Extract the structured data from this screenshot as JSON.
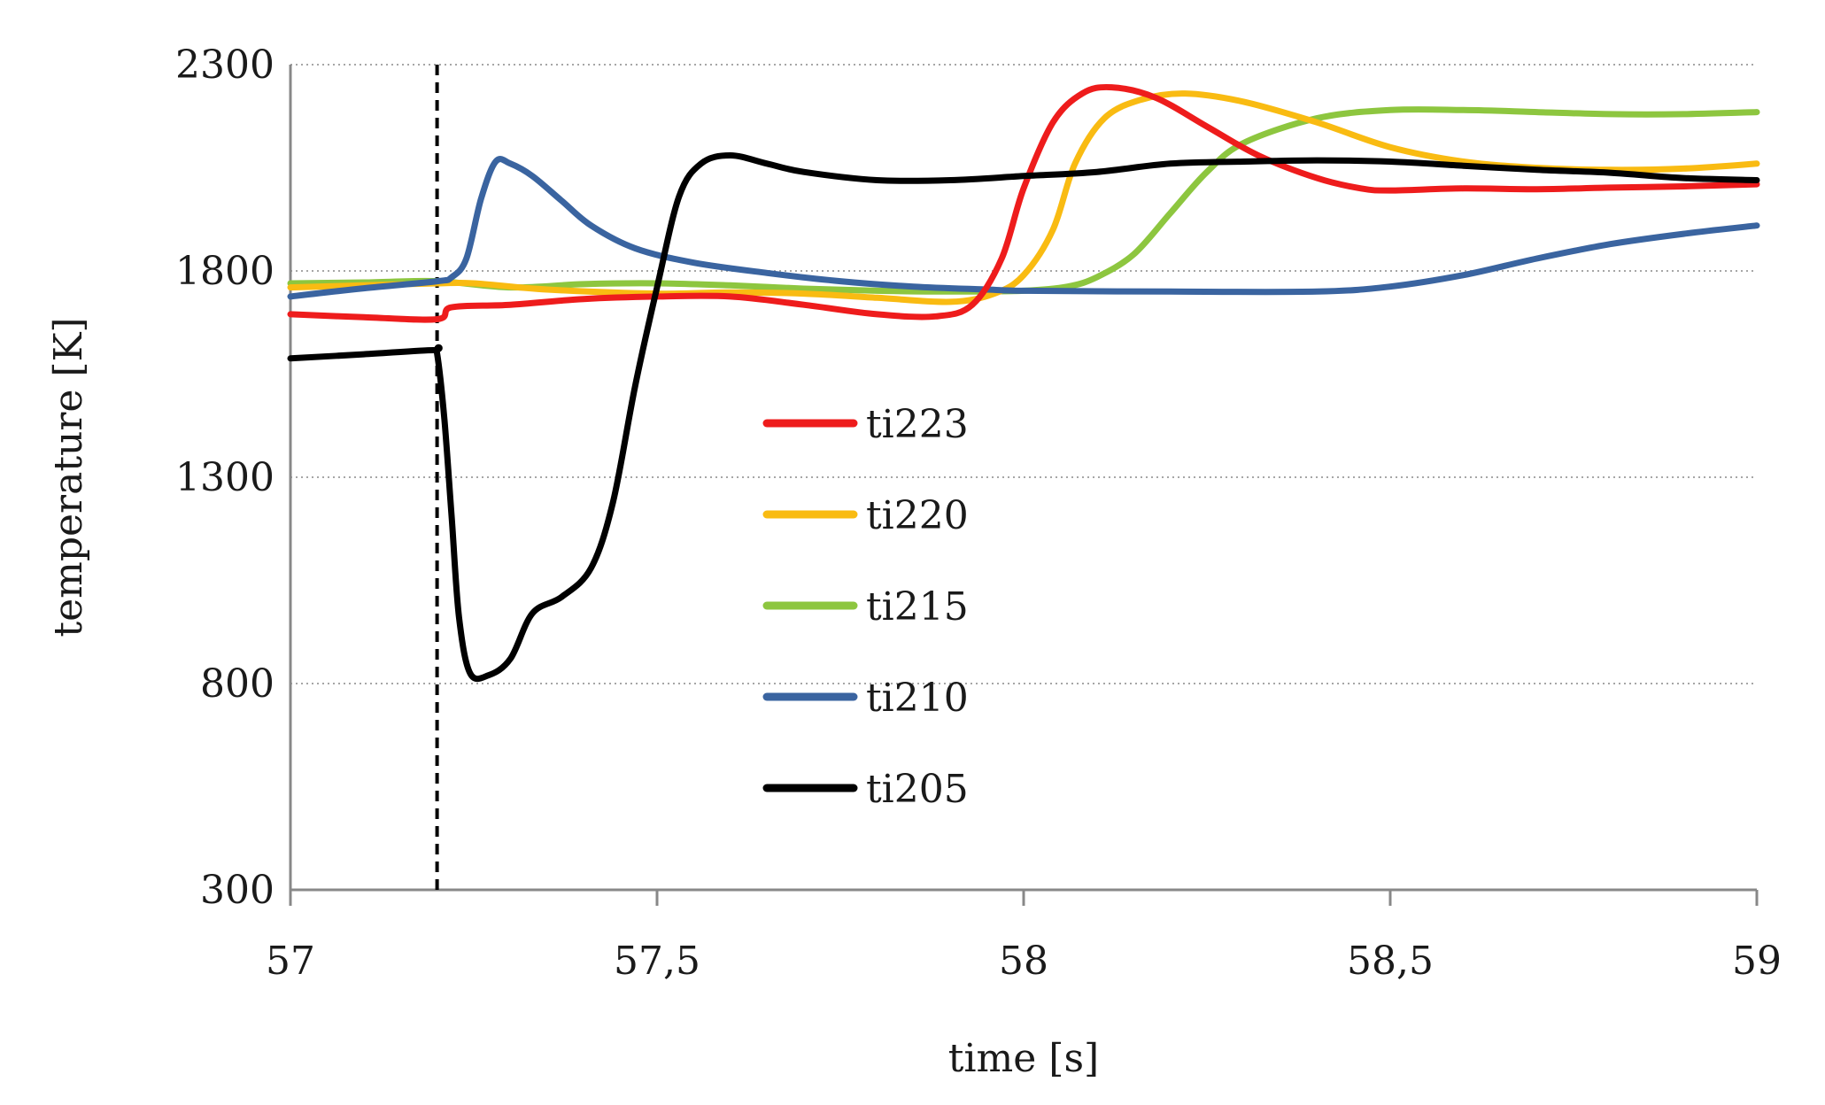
{
  "chart_data": {
    "type": "line",
    "title": "",
    "xlabel": "time [s]",
    "ylabel": "temperature [K]",
    "xlim": [
      57,
      59
    ],
    "ylim": [
      300,
      2300
    ],
    "x_ticks": [
      57,
      57.5,
      58,
      58.5,
      59
    ],
    "x_tick_labels": [
      "57",
      "57,5",
      "58",
      "58,5",
      "59"
    ],
    "y_ticks": [
      300,
      800,
      1300,
      1800,
      2300
    ],
    "y_tick_labels": [
      "300",
      "800",
      "1300",
      "1800",
      "2300"
    ],
    "grid": true,
    "event_marker_x": 57.2,
    "legend_position": "center",
    "series": [
      {
        "name": "ti223",
        "color": "#ee1c1c",
        "points": [
          [
            57.0,
            1695
          ],
          [
            57.1,
            1688
          ],
          [
            57.2,
            1683
          ],
          [
            57.22,
            1712
          ],
          [
            57.3,
            1718
          ],
          [
            57.4,
            1732
          ],
          [
            57.5,
            1738
          ],
          [
            57.6,
            1738
          ],
          [
            57.7,
            1718
          ],
          [
            57.8,
            1695
          ],
          [
            57.88,
            1690
          ],
          [
            57.93,
            1718
          ],
          [
            57.97,
            1830
          ],
          [
            58.0,
            2000
          ],
          [
            58.04,
            2160
          ],
          [
            58.08,
            2230
          ],
          [
            58.12,
            2245
          ],
          [
            58.18,
            2220
          ],
          [
            58.25,
            2150
          ],
          [
            58.32,
            2080
          ],
          [
            58.4,
            2025
          ],
          [
            58.46,
            2000
          ],
          [
            58.5,
            1995
          ],
          [
            58.6,
            2000
          ],
          [
            58.7,
            1998
          ],
          [
            58.8,
            2002
          ],
          [
            58.9,
            2005
          ],
          [
            59.0,
            2010
          ]
        ]
      },
      {
        "name": "ti220",
        "color": "#f9bb12",
        "points": [
          [
            57.0,
            1760
          ],
          [
            57.1,
            1765
          ],
          [
            57.2,
            1770
          ],
          [
            57.25,
            1770
          ],
          [
            57.35,
            1755
          ],
          [
            57.5,
            1745
          ],
          [
            57.6,
            1748
          ],
          [
            57.7,
            1745
          ],
          [
            57.8,
            1735
          ],
          [
            57.9,
            1725
          ],
          [
            57.96,
            1745
          ],
          [
            58.0,
            1790
          ],
          [
            58.04,
            1900
          ],
          [
            58.07,
            2060
          ],
          [
            58.11,
            2170
          ],
          [
            58.16,
            2215
          ],
          [
            58.22,
            2230
          ],
          [
            58.3,
            2210
          ],
          [
            58.4,
            2160
          ],
          [
            58.5,
            2100
          ],
          [
            58.6,
            2065
          ],
          [
            58.7,
            2050
          ],
          [
            58.8,
            2045
          ],
          [
            58.9,
            2048
          ],
          [
            59.0,
            2060
          ]
        ]
      },
      {
        "name": "ti215",
        "color": "#8dc63f",
        "points": [
          [
            57.0,
            1770
          ],
          [
            57.1,
            1772
          ],
          [
            57.2,
            1775
          ],
          [
            57.3,
            1760
          ],
          [
            57.4,
            1768
          ],
          [
            57.5,
            1770
          ],
          [
            57.6,
            1765
          ],
          [
            57.7,
            1757
          ],
          [
            57.8,
            1752
          ],
          [
            57.9,
            1750
          ],
          [
            58.0,
            1752
          ],
          [
            58.06,
            1762
          ],
          [
            58.1,
            1785
          ],
          [
            58.15,
            1840
          ],
          [
            58.2,
            1940
          ],
          [
            58.25,
            2040
          ],
          [
            58.3,
            2110
          ],
          [
            58.4,
            2170
          ],
          [
            58.5,
            2190
          ],
          [
            58.6,
            2190
          ],
          [
            58.7,
            2185
          ],
          [
            58.8,
            2180
          ],
          [
            58.9,
            2180
          ],
          [
            59.0,
            2185
          ]
        ]
      },
      {
        "name": "ti210",
        "color": "#3a64a0",
        "points": [
          [
            57.0,
            1738
          ],
          [
            57.1,
            1758
          ],
          [
            57.2,
            1775
          ],
          [
            57.22,
            1785
          ],
          [
            57.24,
            1830
          ],
          [
            57.26,
            1975
          ],
          [
            57.28,
            2065
          ],
          [
            57.3,
            2060
          ],
          [
            57.33,
            2030
          ],
          [
            57.37,
            1970
          ],
          [
            57.41,
            1910
          ],
          [
            57.47,
            1855
          ],
          [
            57.55,
            1820
          ],
          [
            57.65,
            1795
          ],
          [
            57.75,
            1775
          ],
          [
            57.85,
            1762
          ],
          [
            57.95,
            1755
          ],
          [
            58.0,
            1752
          ],
          [
            58.2,
            1750
          ],
          [
            58.4,
            1750
          ],
          [
            58.5,
            1762
          ],
          [
            58.6,
            1790
          ],
          [
            58.7,
            1830
          ],
          [
            58.8,
            1865
          ],
          [
            58.9,
            1890
          ],
          [
            59.0,
            1910
          ]
        ]
      },
      {
        "name": "ti205",
        "color": "#000000",
        "points": [
          [
            57.0,
            1588
          ],
          [
            57.1,
            1598
          ],
          [
            57.195,
            1608
          ],
          [
            57.2,
            1600
          ],
          [
            57.21,
            1440
          ],
          [
            57.22,
            1200
          ],
          [
            57.23,
            960
          ],
          [
            57.245,
            825
          ],
          [
            57.27,
            820
          ],
          [
            57.3,
            860
          ],
          [
            57.33,
            970
          ],
          [
            57.37,
            1010
          ],
          [
            57.41,
            1080
          ],
          [
            57.44,
            1240
          ],
          [
            57.47,
            1520
          ],
          [
            57.5,
            1760
          ],
          [
            57.53,
            1980
          ],
          [
            57.56,
            2060
          ],
          [
            57.6,
            2080
          ],
          [
            57.65,
            2060
          ],
          [
            57.7,
            2040
          ],
          [
            57.8,
            2020
          ],
          [
            57.9,
            2020
          ],
          [
            58.0,
            2030
          ],
          [
            58.1,
            2040
          ],
          [
            58.2,
            2060
          ],
          [
            58.3,
            2065
          ],
          [
            58.4,
            2068
          ],
          [
            58.5,
            2065
          ],
          [
            58.6,
            2055
          ],
          [
            58.7,
            2045
          ],
          [
            58.8,
            2038
          ],
          [
            58.9,
            2025
          ],
          [
            59.0,
            2020
          ]
        ]
      }
    ]
  }
}
